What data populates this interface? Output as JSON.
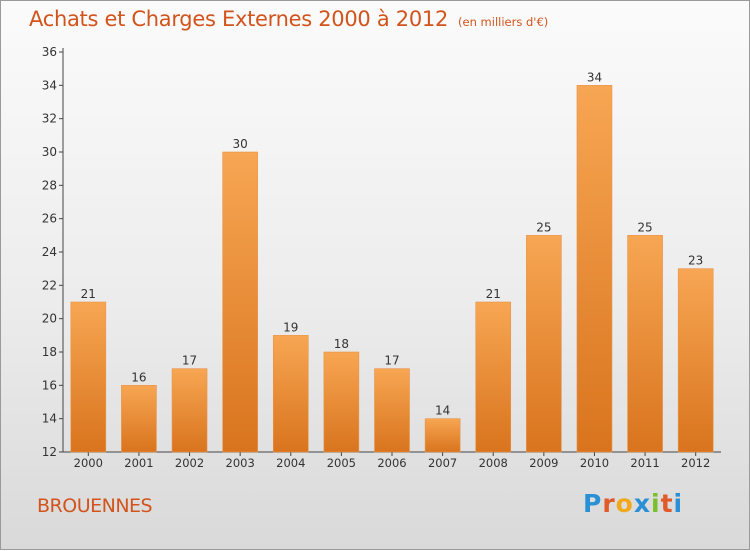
{
  "title": "Achats et Charges Externes 2000 à 2012",
  "unit": "(en milliers d'€)",
  "commune": "BROUENNES",
  "logo": {
    "letters": [
      "P",
      "r",
      "o",
      "x",
      "i",
      "t",
      "i"
    ],
    "colors": [
      "#2b8fd6",
      "#e05a2a",
      "#f2a81c",
      "#2b8fd6",
      "#7bbf2a",
      "#e05a2a",
      "#2b8fd6"
    ]
  },
  "colors": {
    "bar_light": "#f7a653",
    "bar_dark": "#d9741e",
    "title": "#d2541c"
  },
  "chart_data": {
    "type": "bar",
    "categories": [
      "2000",
      "2001",
      "2002",
      "2003",
      "2004",
      "2005",
      "2006",
      "2007",
      "2008",
      "2009",
      "2010",
      "2011",
      "2012"
    ],
    "values": [
      21,
      16,
      17,
      30,
      19,
      18,
      17,
      14,
      21,
      25,
      34,
      25,
      23
    ],
    "yticks": [
      12,
      14,
      16,
      18,
      20,
      22,
      24,
      26,
      28,
      30,
      32,
      34,
      36
    ],
    "ylim": [
      12,
      36
    ],
    "grid": false,
    "data_labels": true
  }
}
